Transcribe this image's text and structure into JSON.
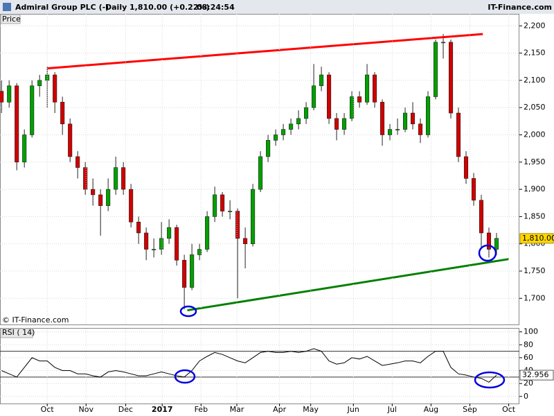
{
  "header": {
    "symbol": "Admiral Group PLC (-)",
    "period": "Daily",
    "quote": "1,810.00 (+0.22%)",
    "time": "08:24:54",
    "site": "IT-Finance.com"
  },
  "chart_data": [
    {
      "type": "candlestick",
      "label": "Price",
      "watermark": "© IT-Finance.com",
      "up_color": "#00a000",
      "down_color": "#d00000",
      "xlim": [
        -0.2,
        68
      ],
      "ylim": [
        1652,
        2222
      ],
      "yticks": [
        {
          "value": 1700,
          "label": "1,700"
        },
        {
          "value": 1750,
          "label": "1,750"
        },
        {
          "value": 1800,
          "label": "1,800"
        },
        {
          "value": 1850,
          "label": "1,850"
        },
        {
          "value": 1900,
          "label": "1,900"
        },
        {
          "value": 1950,
          "label": "1,950"
        },
        {
          "value": 2000,
          "label": "2,000"
        },
        {
          "value": 2050,
          "label": "2,050"
        },
        {
          "value": 2100,
          "label": "2,100"
        },
        {
          "value": 2150,
          "label": "2,150"
        },
        {
          "value": 2200,
          "label": "2,200"
        }
      ],
      "grid": true,
      "last_price": {
        "value": 1810,
        "label": "1,810.00"
      },
      "candles": [
        [
          2080,
          2100,
          2040,
          2060
        ],
        [
          2060,
          2100,
          2050,
          2090
        ],
        [
          2090,
          2095,
          1935,
          1950
        ],
        [
          1950,
          2010,
          1940,
          2000
        ],
        [
          2000,
          2100,
          1995,
          2090
        ],
        [
          2090,
          2110,
          2070,
          2100
        ],
        [
          2100,
          2125,
          2050,
          2110
        ],
        [
          2110,
          2115,
          2040,
          2060
        ],
        [
          2060,
          2070,
          2000,
          2020
        ],
        [
          2020,
          2030,
          1950,
          1960
        ],
        [
          1960,
          1970,
          1920,
          1940
        ],
        [
          1940,
          1950,
          1890,
          1900
        ],
        [
          1900,
          1920,
          1870,
          1890
        ],
        [
          1890,
          1900,
          1815,
          1870
        ],
        [
          1870,
          1920,
          1860,
          1900
        ],
        [
          1900,
          1960,
          1890,
          1940
        ],
        [
          1940,
          1950,
          1890,
          1900
        ],
        [
          1900,
          1910,
          1830,
          1840
        ],
        [
          1840,
          1850,
          1800,
          1820
        ],
        [
          1820,
          1830,
          1770,
          1790
        ],
        [
          1790,
          1810,
          1775,
          1790
        ],
        [
          1790,
          1840,
          1780,
          1810
        ],
        [
          1810,
          1845,
          1800,
          1830
        ],
        [
          1830,
          1835,
          1760,
          1770
        ],
        [
          1770,
          1780,
          1680,
          1720
        ],
        [
          1720,
          1800,
          1715,
          1780
        ],
        [
          1780,
          1800,
          1770,
          1790
        ],
        [
          1790,
          1860,
          1785,
          1850
        ],
        [
          1850,
          1905,
          1840,
          1890
        ],
        [
          1890,
          1895,
          1850,
          1860
        ],
        [
          1860,
          1880,
          1845,
          1860
        ],
        [
          1860,
          1865,
          1700,
          1810
        ],
        [
          1810,
          1830,
          1755,
          1800
        ],
        [
          1800,
          1910,
          1795,
          1900
        ],
        [
          1900,
          1970,
          1895,
          1960
        ],
        [
          1960,
          2000,
          1950,
          1990
        ],
        [
          1990,
          2010,
          1980,
          2000
        ],
        [
          2000,
          2020,
          1990,
          2010
        ],
        [
          2010,
          2030,
          2000,
          2020
        ],
        [
          2020,
          2045,
          2010,
          2030
        ],
        [
          2030,
          2060,
          2020,
          2050
        ],
        [
          2050,
          2130,
          2045,
          2090
        ],
        [
          2090,
          2125,
          2080,
          2110
        ],
        [
          2110,
          2115,
          2020,
          2030
        ],
        [
          2030,
          2040,
          1990,
          2010
        ],
        [
          2010,
          2040,
          2000,
          2030
        ],
        [
          2030,
          2080,
          2025,
          2070
        ],
        [
          2070,
          2080,
          2050,
          2060
        ],
        [
          2060,
          2130,
          2055,
          2110
        ],
        [
          2110,
          2115,
          2050,
          2060
        ],
        [
          2060,
          2065,
          1980,
          2000
        ],
        [
          2000,
          2020,
          1990,
          2010
        ],
        [
          2010,
          2030,
          2000,
          2010
        ],
        [
          2010,
          2050,
          2005,
          2040
        ],
        [
          2040,
          2060,
          2010,
          2020
        ],
        [
          2020,
          2030,
          1985,
          2000
        ],
        [
          2000,
          2080,
          1995,
          2070
        ],
        [
          2070,
          2175,
          2065,
          2170
        ],
        [
          2170,
          2185,
          2140,
          2170
        ],
        [
          2170,
          2175,
          2030,
          2040
        ],
        [
          2040,
          2050,
          1950,
          1960
        ],
        [
          1960,
          1970,
          1910,
          1920
        ],
        [
          1920,
          1930,
          1870,
          1880
        ],
        [
          1880,
          1890,
          1790,
          1820
        ],
        [
          1820,
          1830,
          1775,
          1790
        ],
        [
          1790,
          1820,
          1780,
          1810
        ]
      ],
      "trendlines": [
        {
          "color": "#ff0000",
          "x": [
            6.0,
            63.2
          ],
          "y": [
            2122,
            2185
          ]
        },
        {
          "color": "#008000",
          "x": [
            24.4,
            66.6
          ],
          "y": [
            1678,
            1772
          ]
        }
      ]
    },
    {
      "type": "line",
      "label": "RSI ( 14)",
      "color": "#000000",
      "xlim": [
        -0.2,
        68
      ],
      "ylim": [
        -11,
        105
      ],
      "yticks": [
        0,
        20,
        40,
        60,
        80,
        100
      ],
      "levels": [
        70,
        30
      ],
      "grid": true,
      "values": [
        40,
        35,
        30,
        45,
        60,
        55,
        55,
        45,
        40,
        40,
        35,
        35,
        32,
        30,
        38,
        40,
        38,
        35,
        32,
        32,
        35,
        38,
        35,
        32,
        30,
        40,
        55,
        62,
        68,
        65,
        60,
        55,
        52,
        60,
        68,
        70,
        68,
        68,
        70,
        68,
        70,
        74,
        70,
        55,
        50,
        52,
        60,
        58,
        62,
        55,
        48,
        50,
        52,
        55,
        55,
        52,
        62,
        70,
        70,
        45,
        35,
        33,
        30,
        28,
        22,
        32.956
      ],
      "xticks": [
        {
          "value": 6.0,
          "label": "Oct"
        },
        {
          "value": 11.1,
          "label": "Nov"
        },
        {
          "value": 16.3,
          "label": "Dec"
        },
        {
          "value": 21.1,
          "label": "2017"
        },
        {
          "value": 26.2,
          "label": "Feb"
        },
        {
          "value": 30.9,
          "label": "Mar"
        },
        {
          "value": 36.5,
          "label": "Apr"
        },
        {
          "value": 40.6,
          "label": "May"
        },
        {
          "value": 46.2,
          "label": "Jun"
        },
        {
          "value": 51.3,
          "label": "Jul"
        },
        {
          "value": 56.4,
          "label": "Aug"
        },
        {
          "value": 61.5,
          "label": "Sep"
        },
        {
          "value": 66.6,
          "label": "Oct"
        }
      ]
    }
  ]
}
